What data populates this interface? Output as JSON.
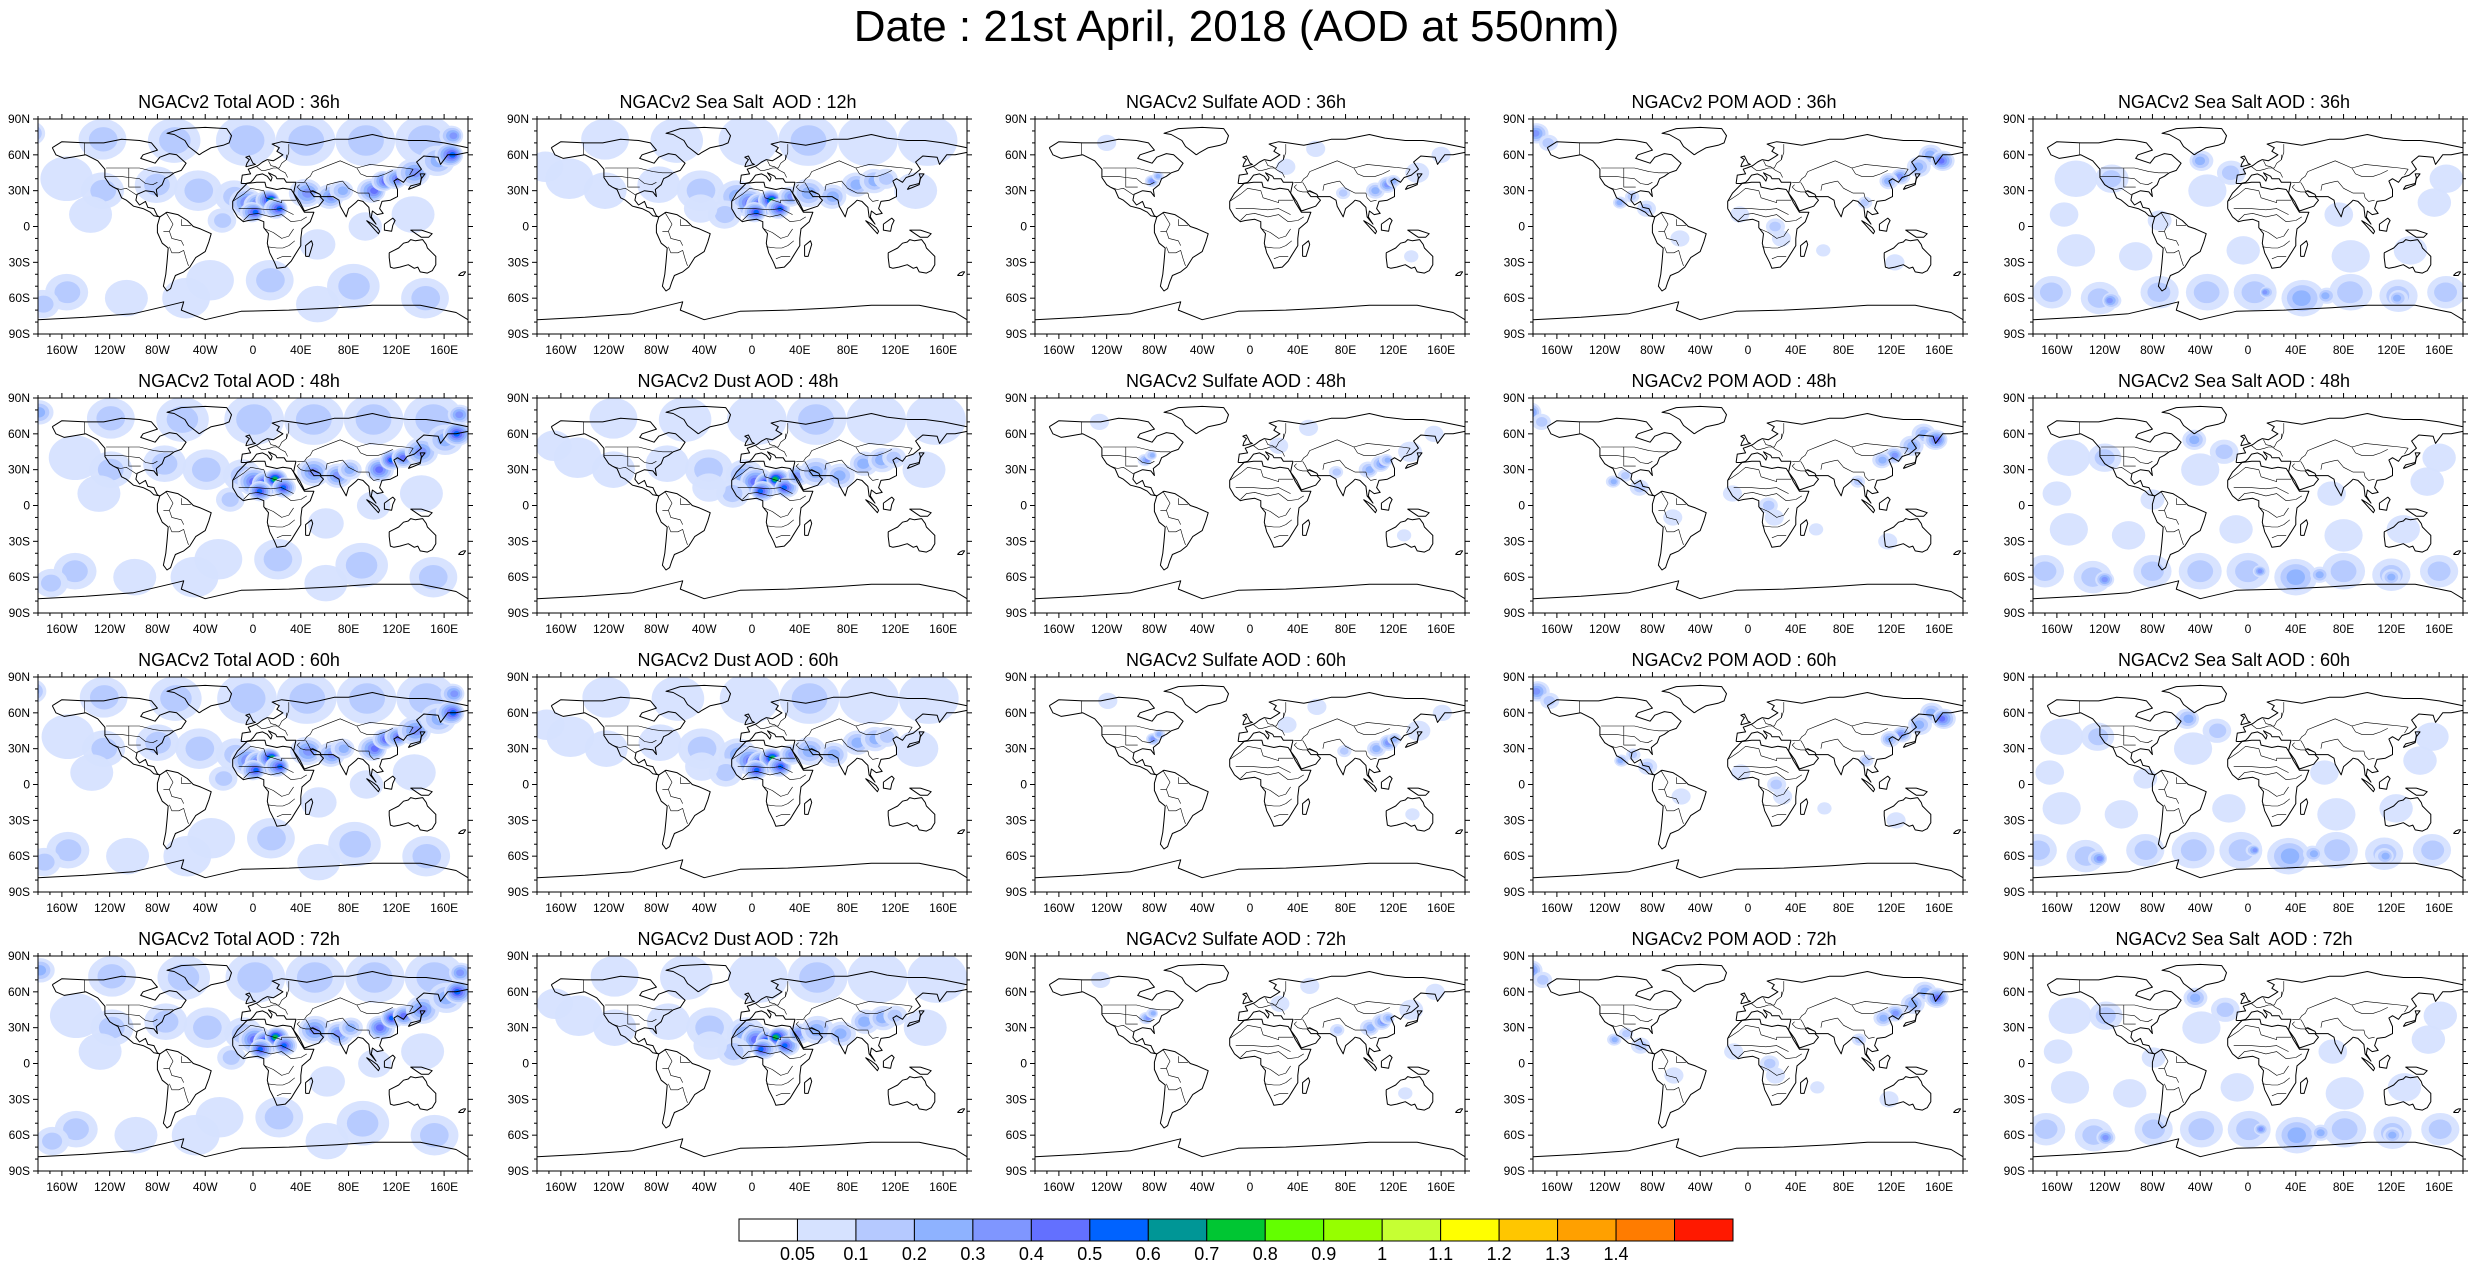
{
  "title": "Date : 21st April, 2018 (AOD at 550nm)",
  "lat_ticks": [
    "90N",
    "60N",
    "30N",
    "0",
    "30S",
    "60S",
    "90S"
  ],
  "lon_ticks": [
    "160W",
    "120W",
    "80W",
    "40W",
    "0",
    "40E",
    "80E",
    "120E",
    "160E"
  ],
  "grid": {
    "columns": [
      "Total",
      "Sea Salt / Dust",
      "Sulfate",
      "POM",
      "Sea Salt"
    ],
    "rows": [
      {
        "panels": [
          {
            "title": "NGACv2 Total AOD : 36h",
            "type": "total"
          },
          {
            "title": "NGACv2 Sea Salt  AOD : 12h",
            "type": "dust"
          },
          {
            "title": "NGACv2 Sulfate AOD : 36h",
            "type": "sulfate"
          },
          {
            "title": "NGACv2 POM AOD : 36h",
            "type": "pom"
          },
          {
            "title": "NGACv2 Sea Salt AOD : 36h",
            "type": "seasalt"
          }
        ]
      },
      {
        "panels": [
          {
            "title": "NGACv2 Total AOD : 48h",
            "type": "total"
          },
          {
            "title": "NGACv2 Dust AOD : 48h",
            "type": "dust"
          },
          {
            "title": "NGACv2 Sulfate AOD : 48h",
            "type": "sulfate"
          },
          {
            "title": "NGACv2 POM AOD : 48h",
            "type": "pom"
          },
          {
            "title": "NGACv2 Sea Salt AOD : 48h",
            "type": "seasalt"
          }
        ]
      },
      {
        "panels": [
          {
            "title": "NGACv2 Total AOD : 60h",
            "type": "total"
          },
          {
            "title": "NGACv2 Dust AOD : 60h",
            "type": "dust"
          },
          {
            "title": "NGACv2 Sulfate AOD : 60h",
            "type": "sulfate"
          },
          {
            "title": "NGACv2 POM AOD : 60h",
            "type": "pom"
          },
          {
            "title": "NGACv2 Sea Salt AOD : 60h",
            "type": "seasalt"
          }
        ]
      },
      {
        "panels": [
          {
            "title": "NGACv2 Total AOD : 72h",
            "type": "total"
          },
          {
            "title": "NGACv2 Dust AOD : 72h",
            "type": "dust"
          },
          {
            "title": "NGACv2 Sulfate AOD : 72h",
            "type": "sulfate"
          },
          {
            "title": "NGACv2 POM AOD : 72h",
            "type": "pom"
          },
          {
            "title": "NGACv2 Sea Salt  AOD : 72h",
            "type": "seasalt"
          }
        ]
      }
    ]
  },
  "colorbar": {
    "labels": [
      "0.05",
      "0.1",
      "0.2",
      "0.3",
      "0.4",
      "0.5",
      "0.6",
      "0.7",
      "0.8",
      "0.9",
      "1",
      "1.1",
      "1.2",
      "1.3",
      "1.4"
    ],
    "colors": [
      "#ffffff",
      "#d6e2ff",
      "#b5c9ff",
      "#8eb2ff",
      "#7f96ff",
      "#6370ff",
      "#0063ff",
      "#009696",
      "#00c633",
      "#63ff00",
      "#96ff00",
      "#c6ff33",
      "#ffff00",
      "#ffc600",
      "#ffa000",
      "#ff7c00",
      "#ff1900"
    ]
  }
}
